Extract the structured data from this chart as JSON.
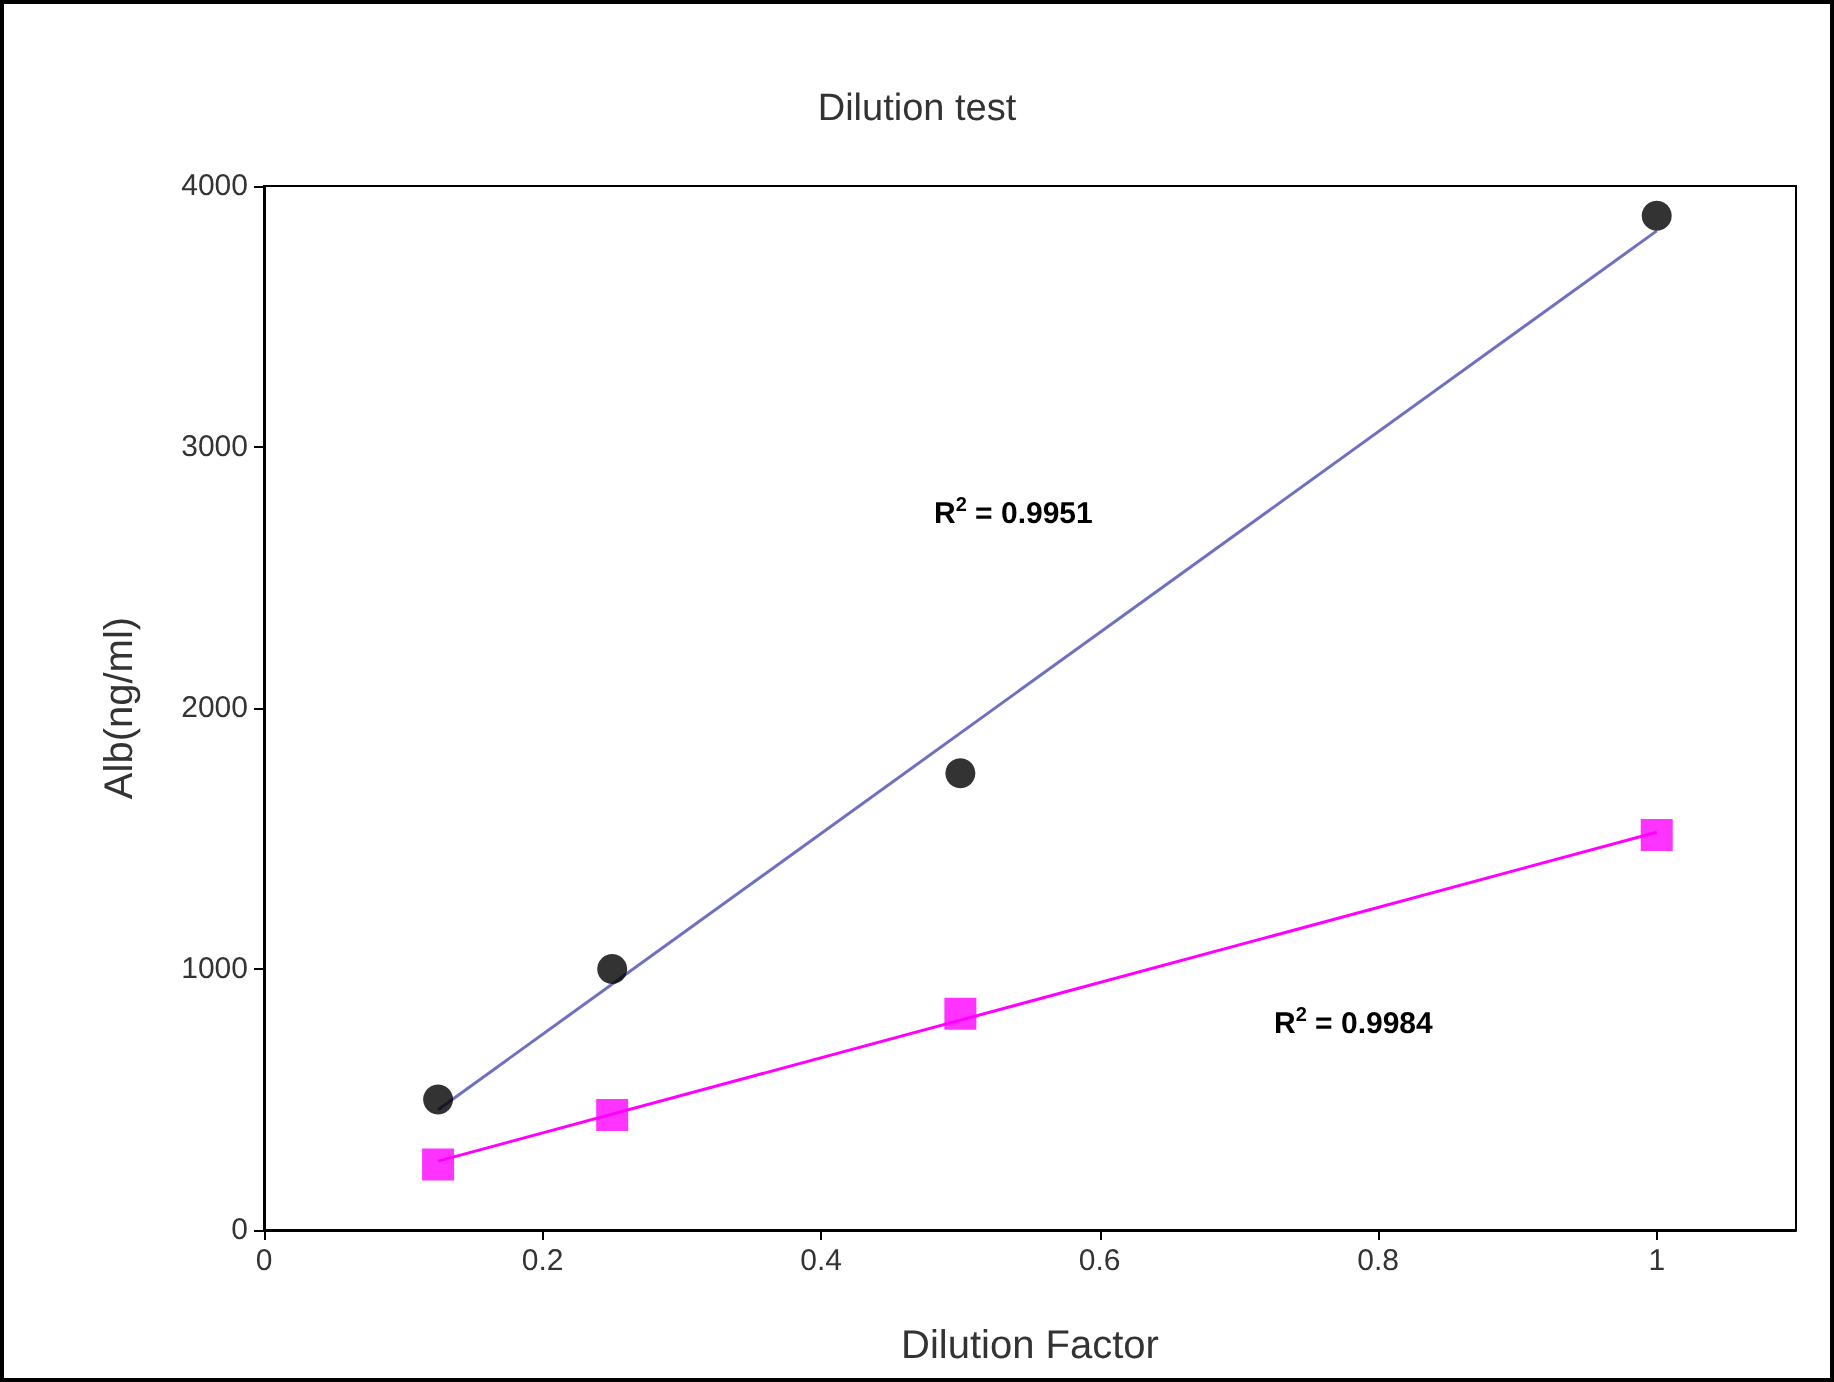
{
  "chart_data": {
    "type": "scatter",
    "title": "Dilution test",
    "xlabel": "Dilution Factor",
    "ylabel": "Alb(ng/ml)",
    "xlim": [
      0,
      1.1
    ],
    "xticks": [
      0,
      0.2,
      0.4,
      0.6,
      0.8,
      1
    ],
    "ylim": [
      0,
      4000
    ],
    "yticks": [
      0,
      1000,
      2000,
      3000,
      4000
    ],
    "grid": false,
    "series": [
      {
        "color": "#000000",
        "marker": "circle",
        "x": [
          0.125,
          0.25,
          0.5,
          1
        ],
        "values": [
          500,
          1000,
          1750,
          3886
        ]
      },
      {
        "color": "#ff00ff",
        "marker": "square",
        "x": [
          0.125,
          0.25,
          0.5,
          1
        ],
        "values": [
          251,
          441,
          829,
          1513
        ]
      },
      {
        "type": "line",
        "color": "#7070c0",
        "marker": "none",
        "x": [
          0.125,
          1
        ],
        "values": [
          461,
          3828
        ]
      },
      {
        "type": "line",
        "color": "#ff00ff",
        "marker": "none",
        "x": [
          0.125,
          1
        ],
        "values": [
          264,
          1524
        ]
      }
    ],
    "annotations": [
      "R$^{2}$ = 0.9951",
      "R$^{2}$ = 0.9984"
    ]
  }
}
